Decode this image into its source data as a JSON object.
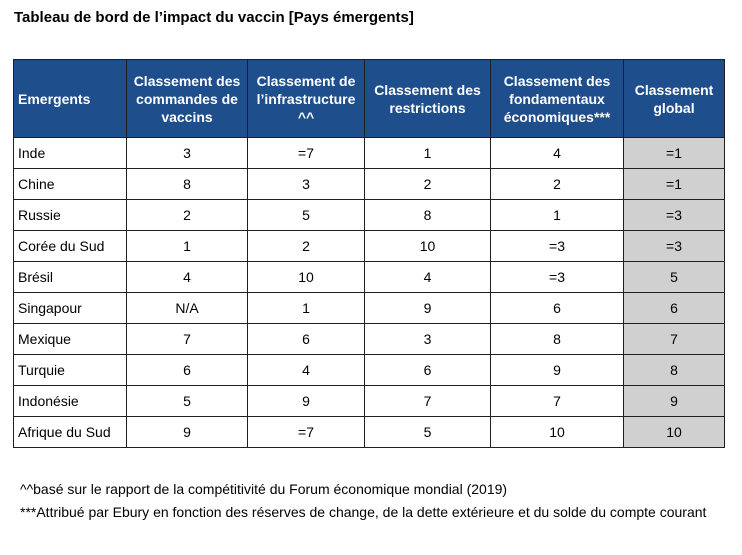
{
  "title": "Tableau de bord de l’impact du vaccin [Pays émergents]",
  "table": {
    "headers": [
      "Emergents",
      "Classement des commandes de vaccins",
      "Classement de l’infrastructure ^^",
      "Classement des restrictions",
      "Classement des fondamentaux économiques***",
      "Classement global"
    ],
    "rows": [
      [
        "Inde",
        "3",
        "=7",
        "1",
        "4",
        "=1"
      ],
      [
        "Chine",
        "8",
        "3",
        "2",
        "2",
        "=1"
      ],
      [
        "Russie",
        "2",
        "5",
        "8",
        "1",
        "=3"
      ],
      [
        "Corée du Sud",
        "1",
        "2",
        "10",
        "=3",
        "=3"
      ],
      [
        "Brésil",
        "4",
        "10",
        "4",
        "=3",
        "5"
      ],
      [
        "Singapour",
        "N/A",
        "1",
        "9",
        "6",
        "6"
      ],
      [
        "Mexique",
        "7",
        "6",
        "3",
        "8",
        "7"
      ],
      [
        "Turquie",
        "6",
        "4",
        "6",
        "9",
        "8"
      ],
      [
        "Indonésie",
        "5",
        "9",
        "7",
        "7",
        "9"
      ],
      [
        "Afrique du Sud",
        "9",
        "=7",
        "5",
        "10",
        "10"
      ]
    ]
  },
  "notes": [
    "^^basé sur le rapport de la compétitivité du Forum économique mondial (2019)",
    "***Attribué par Ebury en fonction des réserves de change, de la dette extérieure et du solde du compte courant"
  ],
  "colors": {
    "header_background": "#1f4e8c",
    "header_text": "#ffffff",
    "overall_column_background": "#d0d0d0",
    "border": "#1f1f1f"
  }
}
